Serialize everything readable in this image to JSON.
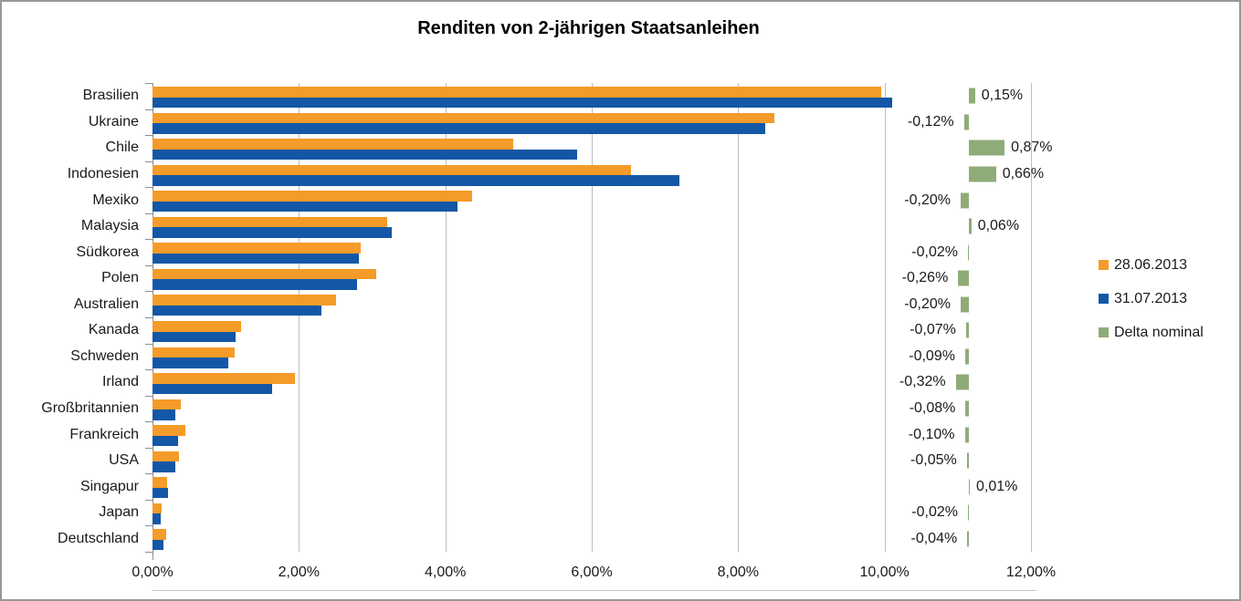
{
  "chart_data": {
    "type": "bar",
    "orientation": "horizontal",
    "title": "Renditen von 2-jährigen Staatsanleihen",
    "categories": [
      "Brasilien",
      "Ukraine",
      "Chile",
      "Indonesien",
      "Mexiko",
      "Malaysia",
      "Südkorea",
      "Polen",
      "Australien",
      "Kanada",
      "Schweden",
      "Irland",
      "Großbritannien",
      "Frankreich",
      "USA",
      "Singapur",
      "Japan",
      "Deutschland"
    ],
    "series": [
      {
        "name": "28.06.2013",
        "color": "#f59b29",
        "values": [
          9.95,
          8.49,
          4.93,
          6.54,
          4.37,
          3.21,
          2.84,
          3.06,
          2.51,
          1.21,
          1.12,
          1.95,
          0.39,
          0.45,
          0.36,
          0.2,
          0.13,
          0.19
        ]
      },
      {
        "name": "31.07.2013",
        "color": "#1457a7",
        "values": [
          10.1,
          8.37,
          5.8,
          7.2,
          4.17,
          3.27,
          2.82,
          2.8,
          2.31,
          1.14,
          1.03,
          1.63,
          0.31,
          0.35,
          0.31,
          0.21,
          0.11,
          0.15
        ]
      },
      {
        "name": "Delta nominal",
        "color": "#8fac78",
        "values": [
          0.15,
          -0.12,
          0.87,
          0.66,
          -0.2,
          0.06,
          -0.02,
          -0.26,
          -0.2,
          -0.07,
          -0.09,
          -0.32,
          -0.08,
          -0.1,
          -0.05,
          0.01,
          -0.02,
          -0.04
        ],
        "labels": [
          "0,15%",
          "-0,12%",
          "0,87%",
          "0,66%",
          "-0,20%",
          "0,06%",
          "-0,02%",
          "-0,26%",
          "-0,20%",
          "-0,07%",
          "-0,09%",
          "-0,32%",
          "-0,08%",
          "-0,10%",
          "-0,05%",
          "0,01%",
          "-0,02%",
          "-0,04%"
        ]
      }
    ],
    "x_axis": {
      "ticks": [
        "0,00%",
        "2,00%",
        "4,00%",
        "6,00%",
        "8,00%",
        "10,00%",
        "12,00%"
      ],
      "min": 0,
      "max": 12,
      "unit": "%"
    },
    "grid": true,
    "legend_position": "right",
    "colors": {
      "gridline": "#bdbdbd",
      "axis": "#8e8e8e",
      "text": "#1a1a1a"
    }
  }
}
